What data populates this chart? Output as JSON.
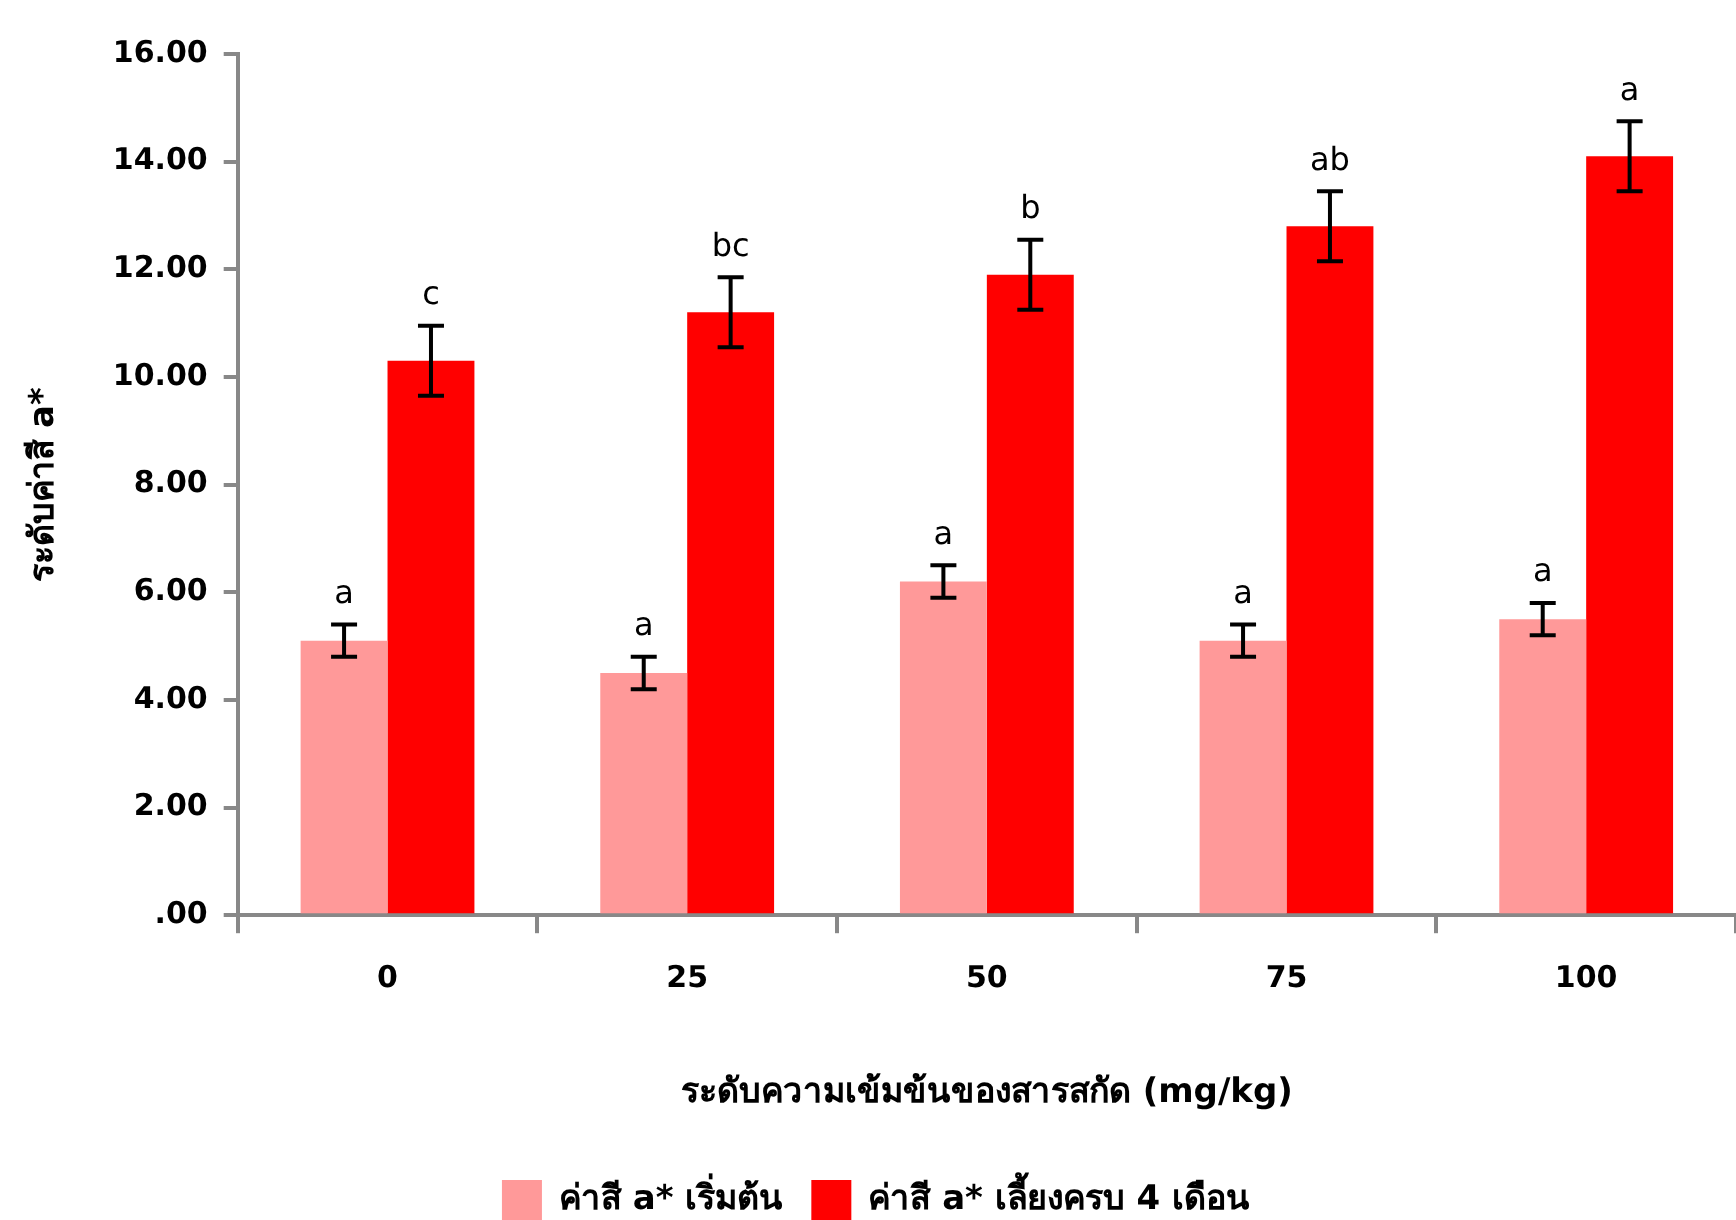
{
  "chart_data": {
    "type": "bar",
    "xlabel": "ระดับความเข้มข้นของสารสกัด (mg/kg)",
    "ylabel": "ระดับค่าสี a*",
    "categories": [
      "0",
      "25",
      "50",
      "75",
      "100"
    ],
    "series": [
      {
        "name": "ค่าสี a* เริ่มต้น",
        "color": "#ff9999",
        "values": [
          5.1,
          4.5,
          6.2,
          5.1,
          5.5
        ],
        "errors": [
          0.3,
          0.3,
          0.3,
          0.3,
          0.3
        ],
        "value_labels": [
          "a",
          "a",
          "a",
          "a",
          "a"
        ]
      },
      {
        "name": "ค่าสี a* เลี้ยงครบ 4 เดือน",
        "color": "#ff0000",
        "values": [
          10.3,
          11.2,
          11.9,
          12.8,
          14.1
        ],
        "errors": [
          0.65,
          0.65,
          0.65,
          0.65,
          0.65
        ],
        "value_labels": [
          "c",
          "bc",
          "b",
          "ab",
          "a"
        ]
      }
    ],
    "ylim": [
      0,
      16
    ],
    "yticks": [
      {
        "value": 0,
        "label": ".00"
      },
      {
        "value": 2,
        "label": "2.00"
      },
      {
        "value": 4,
        "label": "4.00"
      },
      {
        "value": 6,
        "label": "6.00"
      },
      {
        "value": 8,
        "label": "8.00"
      },
      {
        "value": 10,
        "label": "10.00"
      },
      {
        "value": 12,
        "label": "12.00"
      },
      {
        "value": 14,
        "label": "14.00"
      },
      {
        "value": 16,
        "label": "16.00"
      }
    ],
    "grid": false,
    "legend": "bottom"
  }
}
